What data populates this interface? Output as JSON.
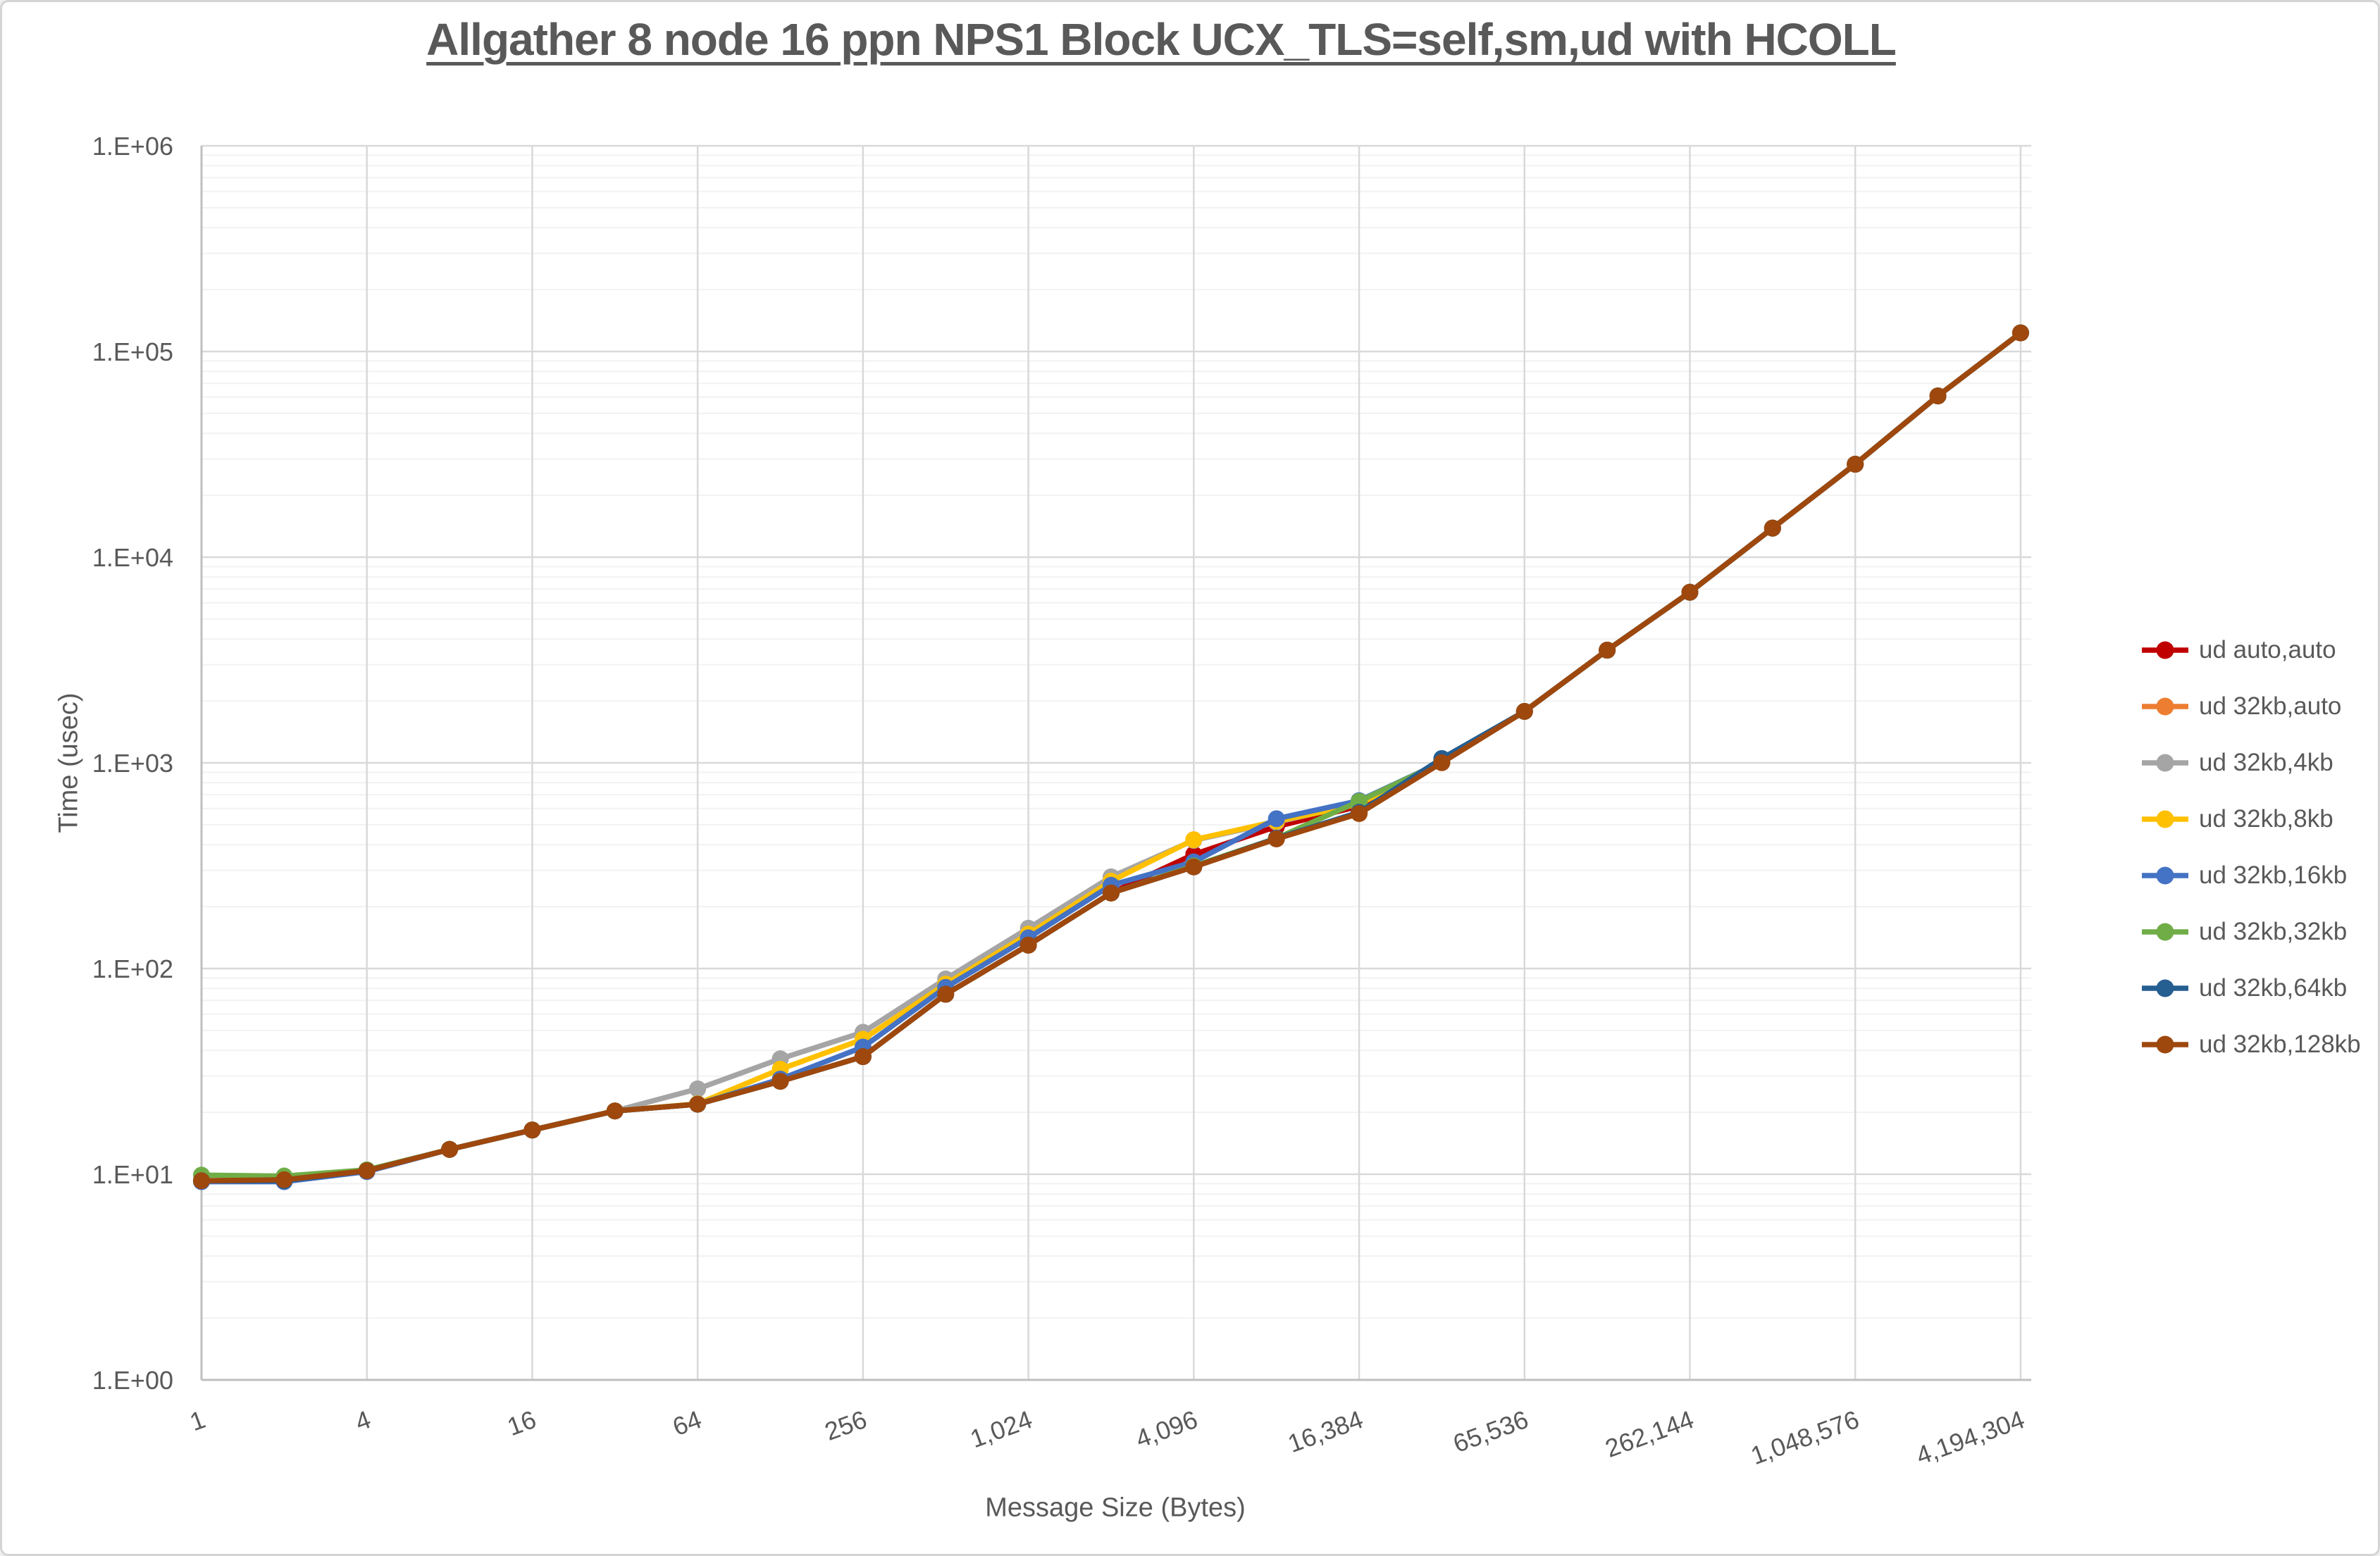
{
  "frame": {
    "background": "#FFFFFF",
    "border_color": "#D4D4D4"
  },
  "chart_data": {
    "type": "line",
    "title": "Allgather 8 node 16 ppn NPS1 Block UCX_TLS=self,sm,ud with HCOLL",
    "xlabel": "Message Size (Bytes)",
    "ylabel": "Time (usec)",
    "legend_position": "right",
    "grid": {
      "major_color": "#D9D9D9",
      "minor_color": "#F2F2F2",
      "axis_color": "#BFBFBF",
      "y_minor": "log decades 2-9",
      "x_minor": "off"
    },
    "x_axis": {
      "scale": "log2 categories",
      "tick_labels": [
        "1",
        "4",
        "16",
        "64",
        "256",
        "1,024",
        "4,096",
        "16,384",
        "65,536",
        "262,144",
        "1,048,576",
        "4,194,304"
      ]
    },
    "y_axis": {
      "scale": "log10",
      "min": 1,
      "max": 1000000,
      "tick_labels": [
        "1.E+00",
        "1.E+01",
        "1.E+02",
        "1.E+03",
        "1.E+04",
        "1.E+05",
        "1.E+06"
      ]
    },
    "x": [
      1,
      2,
      4,
      8,
      16,
      32,
      64,
      128,
      256,
      512,
      1024,
      2048,
      4096,
      8192,
      16384,
      32768,
      65536,
      131072,
      262144,
      524288,
      1048576,
      2097152,
      4194304
    ],
    "series": [
      {
        "name": "ud auto,auto",
        "color": "#C00000",
        "values": [
          9.3,
          9.3,
          10.4,
          13.2,
          16.4,
          20.3,
          21.9,
          28.3,
          37.3,
          75,
          130,
          233,
          359,
          490,
          615,
          1005,
          1779,
          3531,
          6752,
          13842,
          28311,
          60814,
          123164
        ]
      },
      {
        "name": "ud 32kb,auto",
        "color": "#ED7D31",
        "values": [
          9.3,
          9.3,
          10.4,
          13.2,
          16.4,
          20.3,
          21.9,
          28.3,
          37.3,
          75,
          130,
          233,
          312,
          427,
          567,
          1005,
          1779,
          3531,
          6752,
          13842,
          28311,
          60814,
          123164
        ]
      },
      {
        "name": "ud 32kb,4kb",
        "color": "#A5A5A5",
        "values": [
          9.3,
          9.3,
          10.4,
          13.2,
          16.4,
          20.3,
          26.0,
          36.4,
          49.0,
          89,
          157,
          279,
          420,
          515,
          635,
          1020,
          1779,
          3531,
          6752,
          13842,
          28311,
          60814,
          123164
        ]
      },
      {
        "name": "ud 32kb,8kb",
        "color": "#FFC000",
        "values": [
          9.3,
          9.3,
          10.4,
          13.2,
          16.4,
          20.3,
          22.0,
          32.4,
          45.3,
          84,
          147,
          266,
          423,
          520,
          630,
          1020,
          1779,
          3531,
          6752,
          13842,
          28311,
          60814,
          123164
        ]
      },
      {
        "name": "ud 32kb,16kb",
        "color": "#4472C4",
        "values": [
          9.2,
          9.2,
          10.3,
          13.2,
          16.4,
          20.3,
          21.9,
          29.0,
          41.5,
          81,
          141,
          254,
          330,
          535,
          655,
          1010,
          1779,
          3531,
          6752,
          13842,
          28311,
          60814,
          123164
        ]
      },
      {
        "name": "ud 32kb,32kb",
        "color": "#70AD47",
        "values": [
          9.9,
          9.8,
          10.5,
          13.2,
          16.4,
          20.3,
          21.9,
          28.3,
          37.3,
          75,
          130,
          233,
          315,
          430,
          650,
          1010,
          1779,
          3531,
          6752,
          13842,
          28311,
          60814,
          123164
        ]
      },
      {
        "name": "ud 32kb,64kb",
        "color": "#255E91",
        "values": [
          9.3,
          9.3,
          10.4,
          13.2,
          16.4,
          20.3,
          21.9,
          28.3,
          37.3,
          75,
          130,
          233,
          312,
          430,
          575,
          1050,
          1779,
          3531,
          6752,
          13842,
          28311,
          60814,
          123164
        ]
      },
      {
        "name": "ud 32kb,128kb",
        "color": "#9E480E",
        "values": [
          9.3,
          9.4,
          10.4,
          13.2,
          16.4,
          20.3,
          21.9,
          28.3,
          37.3,
          75,
          130,
          233,
          312,
          427,
          567,
          1002,
          1779,
          3531,
          6752,
          13842,
          28311,
          60814,
          123164
        ]
      }
    ]
  }
}
